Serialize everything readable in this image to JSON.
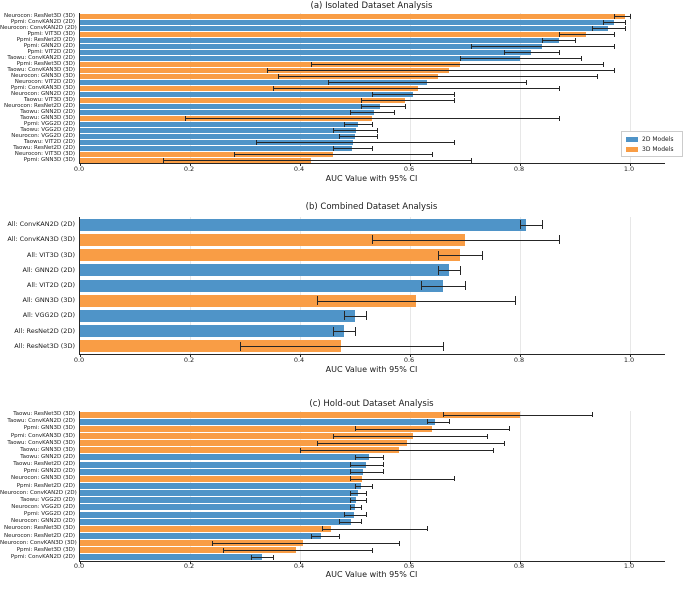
{
  "colors": {
    "bar_2d": "#4f94c8",
    "bar_3d": "#f99d45",
    "error": "#262626",
    "grid": "#e7e7e7",
    "spine": "#262626",
    "background": "#ffffff"
  },
  "legend": {
    "items": [
      {
        "label": "2D Models",
        "group": "2D"
      },
      {
        "label": "3D Models",
        "group": "3D"
      }
    ]
  },
  "x_axis": {
    "label": "AUC Value with 95% CI",
    "ticks": [
      0.0,
      0.2,
      0.4,
      0.6,
      0.8,
      1.0
    ],
    "tick_labels": [
      "0.0",
      "0.2",
      "0.4",
      "0.6",
      "0.8",
      "1.0"
    ],
    "xlim": [
      0,
      1.064
    ]
  },
  "chart_data": [
    {
      "type": "bar",
      "orientation": "horizontal",
      "title": "(a) Isolated Dataset Analysis",
      "xlabel": "AUC Value with 95% CI",
      "xlim": [
        0,
        1.064
      ],
      "legend_position": "right",
      "bars": [
        {
          "label": "Neurocon: ResNet3D (3D)",
          "group": "3D",
          "value": 0.99,
          "ci": [
            0.97,
            1.0
          ]
        },
        {
          "label": "Ppmi: ConvKAN2D (2D)",
          "group": "2D",
          "value": 0.97,
          "ci": [
            0.95,
            0.99
          ]
        },
        {
          "label": "Neurocon: ConvKAN2D (2D)",
          "group": "2D",
          "value": 0.96,
          "ci": [
            0.93,
            0.99
          ]
        },
        {
          "label": "Ppmi: VIT3D (3D)",
          "group": "3D",
          "value": 0.92,
          "ci": [
            0.87,
            0.97
          ]
        },
        {
          "label": "Ppmi: ResNet2D (2D)",
          "group": "2D",
          "value": 0.87,
          "ci": [
            0.84,
            0.9
          ]
        },
        {
          "label": "Ppmi: GNN2D (2D)",
          "group": "2D",
          "value": 0.84,
          "ci": [
            0.71,
            0.97
          ]
        },
        {
          "label": "Ppmi: VIT2D (2D)",
          "group": "2D",
          "value": 0.82,
          "ci": [
            0.77,
            0.87
          ]
        },
        {
          "label": "Taowu: ConvKAN2D (2D)",
          "group": "2D",
          "value": 0.8,
          "ci": [
            0.69,
            0.91
          ]
        },
        {
          "label": "Ppmi: ResNet3D (3D)",
          "group": "3D",
          "value": 0.69,
          "ci": [
            0.42,
            0.95
          ]
        },
        {
          "label": "Taowu: ConvKAN3D (3D)",
          "group": "3D",
          "value": 0.67,
          "ci": [
            0.34,
            0.97
          ]
        },
        {
          "label": "Neurocon: GNN3D (3D)",
          "group": "3D",
          "value": 0.65,
          "ci": [
            0.36,
            0.94
          ]
        },
        {
          "label": "Neurocon: VIT2D (2D)",
          "group": "2D",
          "value": 0.63,
          "ci": [
            0.45,
            0.81
          ]
        },
        {
          "label": "Ppmi: ConvKAN3D (3D)",
          "group": "3D",
          "value": 0.615,
          "ci": [
            0.35,
            0.87
          ]
        },
        {
          "label": "Neurocon: GNN2D (2D)",
          "group": "2D",
          "value": 0.605,
          "ci": [
            0.53,
            0.68
          ]
        },
        {
          "label": "Taowu: VIT3D (3D)",
          "group": "3D",
          "value": 0.59,
          "ci": [
            0.51,
            0.68
          ]
        },
        {
          "label": "Neurocon: ResNet2D (2D)",
          "group": "2D",
          "value": 0.545,
          "ci": [
            0.51,
            0.59
          ]
        },
        {
          "label": "Taowu: GNN2D (2D)",
          "group": "2D",
          "value": 0.535,
          "ci": [
            0.49,
            0.57
          ]
        },
        {
          "label": "Taowu: GNN3D (3D)",
          "group": "3D",
          "value": 0.53,
          "ci": [
            0.19,
            0.87
          ]
        },
        {
          "label": "Ppmi: VGG2D (2D)",
          "group": "2D",
          "value": 0.505,
          "ci": [
            0.48,
            0.53
          ]
        },
        {
          "label": "Taowu: VGG2D (2D)",
          "group": "2D",
          "value": 0.502,
          "ci": [
            0.46,
            0.54
          ]
        },
        {
          "label": "Neurocon: VGG2D (2D)",
          "group": "2D",
          "value": 0.5,
          "ci": [
            0.47,
            0.54
          ]
        },
        {
          "label": "Taowu: VIT2D (2D)",
          "group": "2D",
          "value": 0.497,
          "ci": [
            0.32,
            0.68
          ]
        },
        {
          "label": "Taowu: ResNet2D (2D)",
          "group": "2D",
          "value": 0.494,
          "ci": [
            0.46,
            0.53
          ]
        },
        {
          "label": "Neurocon: VIT3D (3D)",
          "group": "3D",
          "value": 0.46,
          "ci": [
            0.28,
            0.64
          ]
        },
        {
          "label": "Ppmi: GNN3D (3D)",
          "group": "3D",
          "value": 0.42,
          "ci": [
            0.15,
            0.71
          ]
        }
      ]
    },
    {
      "type": "bar",
      "orientation": "horizontal",
      "title": "(b) Combined Dataset Analysis",
      "xlabel": "AUC Value with 95% CI",
      "xlim": [
        0,
        1.064
      ],
      "bars": [
        {
          "label": "All: ConvKAN2D (2D)",
          "group": "2D",
          "value": 0.81,
          "ci": [
            0.8,
            0.84
          ]
        },
        {
          "label": "All: ConvKAN3D (3D)",
          "group": "3D",
          "value": 0.7,
          "ci": [
            0.53,
            0.87
          ]
        },
        {
          "label": "All: VIT3D (3D)",
          "group": "3D",
          "value": 0.69,
          "ci": [
            0.65,
            0.73
          ]
        },
        {
          "label": "All: GNN2D (2D)",
          "group": "2D",
          "value": 0.67,
          "ci": [
            0.65,
            0.69
          ]
        },
        {
          "label": "All: VIT2D (2D)",
          "group": "2D",
          "value": 0.66,
          "ci": [
            0.62,
            0.7
          ]
        },
        {
          "label": "All: GNN3D (3D)",
          "group": "3D",
          "value": 0.61,
          "ci": [
            0.43,
            0.79
          ]
        },
        {
          "label": "All: VGG2D (2D)",
          "group": "2D",
          "value": 0.5,
          "ci": [
            0.48,
            0.52
          ]
        },
        {
          "label": "All: ResNet2D (2D)",
          "group": "2D",
          "value": 0.48,
          "ci": [
            0.46,
            0.5
          ]
        },
        {
          "label": "All: ResNet3D (3D)",
          "group": "3D",
          "value": 0.475,
          "ci": [
            0.29,
            0.66
          ]
        }
      ]
    },
    {
      "type": "bar",
      "orientation": "horizontal",
      "title": "(c) Hold-out Dataset Analysis",
      "xlabel": "AUC Value with 95% CI",
      "xlim": [
        0,
        1.064
      ],
      "bars": [
        {
          "label": "Taowu: ResNet3D (3D)",
          "group": "3D",
          "value": 0.8,
          "ci": [
            0.66,
            0.93
          ]
        },
        {
          "label": "Taowu: ConvKAN2D (2D)",
          "group": "2D",
          "value": 0.645,
          "ci": [
            0.63,
            0.67
          ]
        },
        {
          "label": "Ppmi: GNN3D (3D)",
          "group": "3D",
          "value": 0.64,
          "ci": [
            0.5,
            0.78
          ]
        },
        {
          "label": "Ppmi: ConvKAN3D (3D)",
          "group": "3D",
          "value": 0.605,
          "ci": [
            0.46,
            0.74
          ]
        },
        {
          "label": "Taowu: ConvKAN3D (3D)",
          "group": "3D",
          "value": 0.595,
          "ci": [
            0.43,
            0.77
          ]
        },
        {
          "label": "Taowu: GNN3D (3D)",
          "group": "3D",
          "value": 0.58,
          "ci": [
            0.4,
            0.75
          ]
        },
        {
          "label": "Taowu: GNN2D (2D)",
          "group": "2D",
          "value": 0.525,
          "ci": [
            0.5,
            0.55
          ]
        },
        {
          "label": "Taowu: ResNet2D (2D)",
          "group": "2D",
          "value": 0.52,
          "ci": [
            0.49,
            0.55
          ]
        },
        {
          "label": "Ppmi: GNN2D (2D)",
          "group": "2D",
          "value": 0.515,
          "ci": [
            0.49,
            0.55
          ]
        },
        {
          "label": "Neurocon: GNN3D (3D)",
          "group": "3D",
          "value": 0.513,
          "ci": [
            0.49,
            0.68
          ]
        },
        {
          "label": "Ppmi: ResNet2D (2D)",
          "group": "2D",
          "value": 0.51,
          "ci": [
            0.5,
            0.53
          ]
        },
        {
          "label": "Neurocon: ConvKAN2D (2D)",
          "group": "2D",
          "value": 0.505,
          "ci": [
            0.49,
            0.52
          ]
        },
        {
          "label": "Taowu: VGG2D (2D)",
          "group": "2D",
          "value": 0.502,
          "ci": [
            0.49,
            0.52
          ]
        },
        {
          "label": "Neurocon: VGG2D (2D)",
          "group": "2D",
          "value": 0.5,
          "ci": [
            0.49,
            0.51
          ]
        },
        {
          "label": "Ppmi: VGG2D (2D)",
          "group": "2D",
          "value": 0.498,
          "ci": [
            0.48,
            0.52
          ]
        },
        {
          "label": "Neurocon: GNN2D (2D)",
          "group": "2D",
          "value": 0.493,
          "ci": [
            0.47,
            0.51
          ]
        },
        {
          "label": "Neurocon: ResNet3D (3D)",
          "group": "3D",
          "value": 0.456,
          "ci": [
            0.44,
            0.63
          ]
        },
        {
          "label": "Neurocon: ResNet2D (2D)",
          "group": "2D",
          "value": 0.438,
          "ci": [
            0.42,
            0.47
          ]
        },
        {
          "label": "Neurocon: ConvKAN3D (3D)",
          "group": "3D",
          "value": 0.405,
          "ci": [
            0.24,
            0.58
          ]
        },
        {
          "label": "Ppmi: ResNet3D (3D)",
          "group": "3D",
          "value": 0.393,
          "ci": [
            0.26,
            0.53
          ]
        },
        {
          "label": "Ppmi: ConvKAN2D (2D)",
          "group": "2D",
          "value": 0.33,
          "ci": [
            0.31,
            0.35
          ]
        }
      ]
    }
  ]
}
